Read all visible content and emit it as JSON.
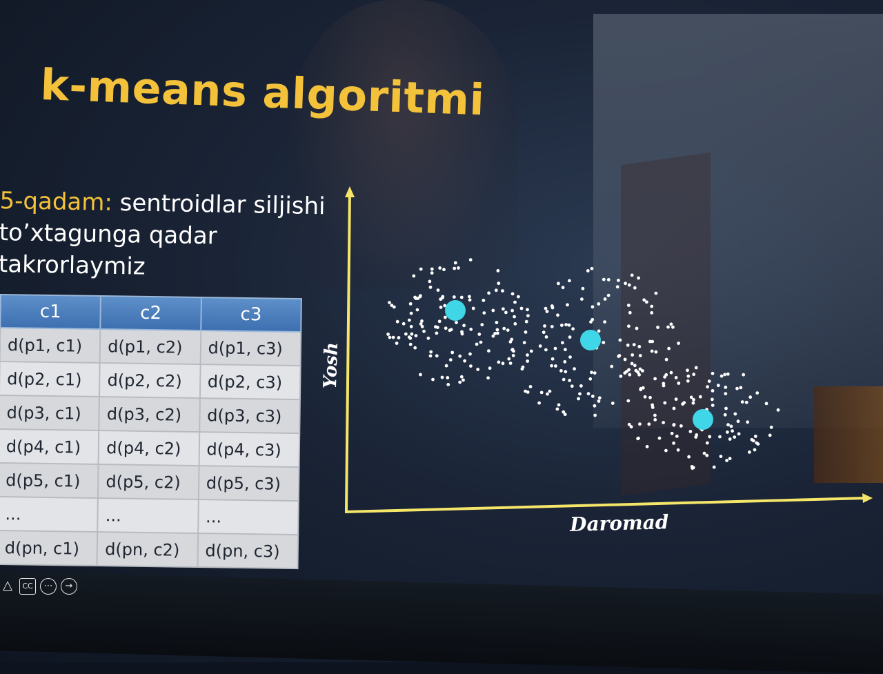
{
  "slide": {
    "title": "k-means algoritmi",
    "step_prefix": "5-qadam:",
    "step_body": " sentroidlar siljishi to’xtagunga qadar takrorlaymiz"
  },
  "table": {
    "headers": [
      "c1",
      "c2",
      "c3"
    ],
    "rows": [
      [
        "d(p1, c1)",
        "d(p1, c2)",
        "d(p1, c3)"
      ],
      [
        "d(p2, c1)",
        "d(p2, c2)",
        "d(p2, c3)"
      ],
      [
        "d(p3, c1)",
        "d(p3, c2)",
        "d(p3, c3)"
      ],
      [
        "d(p4, c1)",
        "d(p4, c2)",
        "d(p4, c3)"
      ],
      [
        "d(p5, c1)",
        "d(p5, c2)",
        "d(p5, c3)"
      ],
      [
        "...",
        "...",
        "..."
      ],
      [
        "d(pn, c1)",
        "d(pn, c2)",
        "d(pn, c3)"
      ]
    ]
  },
  "plot": {
    "ylabel": "Yosh",
    "xlabel": "Daromad",
    "axis_color": "#f5e66a",
    "point_color": "#ffffff",
    "centroid_color": "#3fd6e8"
  },
  "player_controls": {
    "icons": [
      "warning-icon",
      "closed-captions-icon",
      "more-options-icon",
      "next-icon"
    ],
    "cc_label": "CC"
  }
}
